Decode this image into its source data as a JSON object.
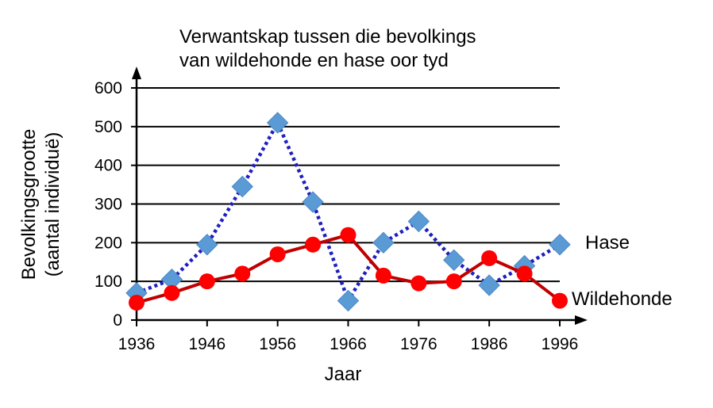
{
  "chart_data": {
    "type": "line",
    "title_lines": [
      "Verwantskap tussen die bevolkings",
      "van wildehonde en hase oor tyd"
    ],
    "xlabel": "Jaar",
    "ylabel_lines": [
      "Bevolkingsgrootte",
      "(aantal individuë)"
    ],
    "x_ticks": [
      1936,
      1946,
      1956,
      1966,
      1976,
      1986,
      1996
    ],
    "y_ticks": [
      0,
      100,
      200,
      300,
      400,
      500,
      600
    ],
    "xlim": [
      1936,
      1996
    ],
    "ylim": [
      0,
      600
    ],
    "grid": "horizontal",
    "series": [
      {
        "name": "Hase",
        "color": "#5b9bd5",
        "line_color": "#1f1fbf",
        "line_style": "dotted",
        "marker": "diamond",
        "x": [
          1936,
          1941,
          1946,
          1951,
          1956,
          1961,
          1966,
          1971,
          1976,
          1981,
          1986,
          1991,
          1996
        ],
        "y": [
          70,
          105,
          195,
          345,
          510,
          305,
          50,
          200,
          255,
          155,
          90,
          140,
          195
        ]
      },
      {
        "name": "Wildehonde",
        "color": "#ff0000",
        "line_color": "#c00000",
        "line_style": "solid",
        "marker": "circle",
        "x": [
          1936,
          1941,
          1946,
          1951,
          1956,
          1961,
          1966,
          1971,
          1976,
          1981,
          1986,
          1991,
          1996
        ],
        "y": [
          45,
          70,
          100,
          120,
          170,
          195,
          220,
          115,
          95,
          100,
          160,
          120,
          50
        ]
      }
    ]
  }
}
